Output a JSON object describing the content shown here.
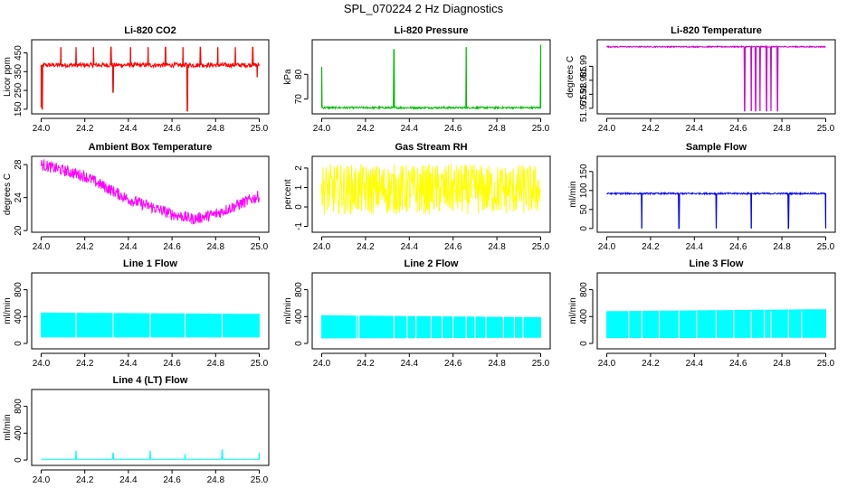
{
  "figure": {
    "title": "SPL_070224  2 Hz Diagnostics"
  },
  "chart_data": [
    {
      "type": "line",
      "title": "Li-820 CO2",
      "ylabel": "Licor ppm",
      "color": "#ff0000",
      "x": [
        24.0,
        25.0
      ],
      "xlim": [
        24.0,
        25.0
      ],
      "ylim": [
        125,
        520
      ],
      "xticks": [
        "24.0",
        "24.2",
        "24.4",
        "24.6",
        "24.8",
        "25.0"
      ],
      "yticks": [
        150,
        250,
        350,
        450
      ],
      "baseline": 385,
      "noise": 12,
      "spikes": [
        [
          24.0,
          160
        ],
        [
          24.005,
          150
        ],
        [
          24.09,
          480
        ],
        [
          24.16,
          480
        ],
        [
          24.24,
          480
        ],
        [
          24.32,
          480
        ],
        [
          24.33,
          240
        ],
        [
          24.41,
          480
        ],
        [
          24.49,
          480
        ],
        [
          24.57,
          480
        ],
        [
          24.65,
          480
        ],
        [
          24.67,
          140
        ],
        [
          24.73,
          480
        ],
        [
          24.81,
          480
        ],
        [
          24.89,
          480
        ],
        [
          24.97,
          480
        ],
        [
          24.99,
          320
        ]
      ]
    },
    {
      "type": "line",
      "title": "Li-820 Pressure",
      "ylabel": "kPa",
      "color": "#00bb00",
      "x": [
        24.0,
        25.0
      ],
      "xlim": [
        24.0,
        25.0
      ],
      "ylim": [
        64,
        94
      ],
      "xticks": [
        "24.0",
        "24.2",
        "24.4",
        "24.6",
        "24.8",
        "25.0"
      ],
      "yticks": [
        70,
        80
      ],
      "baseline": 66.5,
      "noise": 0.4,
      "spikes": [
        [
          24.0,
          83
        ],
        [
          24.33,
          90
        ],
        [
          24.66,
          91
        ],
        [
          25.0,
          92
        ]
      ]
    },
    {
      "type": "line",
      "title": "Li-820 Temperature",
      "ylabel": "degrees C",
      "color": "#cc00cc",
      "x": [
        24.0,
        25.0
      ],
      "xlim": [
        24.0,
        25.0
      ],
      "ylim": [
        51.973,
        51.9995
      ],
      "xticks": [
        "24.0",
        "24.2",
        "24.4",
        "24.6",
        "24.8",
        "25.0"
      ],
      "yticks": [
        51.975,
        51.98,
        51.985,
        51.99
      ],
      "baseline": 51.997,
      "noise": 0.0002,
      "dips": [
        [
          24.63,
          51.974
        ],
        [
          24.66,
          51.974
        ],
        [
          24.68,
          51.974
        ],
        [
          24.7,
          51.974
        ],
        [
          24.73,
          51.974
        ],
        [
          24.75,
          51.974
        ],
        [
          24.78,
          51.974
        ]
      ]
    },
    {
      "type": "line",
      "title": "Ambient Box Temperature",
      "ylabel": "degrees C",
      "color": "#ff00ff",
      "x": [
        24.0,
        25.0
      ],
      "xlim": [
        24.0,
        25.0
      ],
      "ylim": [
        19.8,
        29
      ],
      "xticks": [
        "24.0",
        "24.2",
        "24.4",
        "24.6",
        "24.8",
        "25.0"
      ],
      "yticks": [
        20,
        24,
        28
      ],
      "trend": [
        [
          24.0,
          28.0
        ],
        [
          24.2,
          26.6
        ],
        [
          24.4,
          23.8
        ],
        [
          24.6,
          22.0
        ],
        [
          24.7,
          21.4
        ],
        [
          24.8,
          22.0
        ],
        [
          25.0,
          24.2
        ]
      ],
      "noise": 0.7
    },
    {
      "type": "line",
      "title": "Gas Stream RH",
      "ylabel": "percent",
      "color": "#ffff00",
      "x": [
        24.0,
        25.0
      ],
      "xlim": [
        24.0,
        25.0
      ],
      "ylim": [
        -1.3,
        2.6
      ],
      "xticks": [
        "24.0",
        "24.2",
        "24.4",
        "24.6",
        "24.8",
        "25.0"
      ],
      "yticks": [
        -1,
        0,
        1,
        2
      ],
      "baseline": 0.9,
      "noise": 1.3
    },
    {
      "type": "line",
      "title": "Sample Flow",
      "ylabel": "ml/min",
      "color": "#0000ff",
      "x": [
        24.0,
        25.0
      ],
      "xlim": [
        24.0,
        25.0
      ],
      "ylim": [
        -10,
        190
      ],
      "xticks": [
        "24.0",
        "24.2",
        "24.4",
        "24.6",
        "24.8",
        "25.0"
      ],
      "yticks": [
        0,
        50,
        100,
        150
      ],
      "baseline": 92,
      "noise": 2,
      "dips": [
        [
          24.16,
          0
        ],
        [
          24.33,
          0
        ],
        [
          24.5,
          0
        ],
        [
          24.66,
          0
        ],
        [
          24.83,
          0
        ],
        [
          25.0,
          0
        ]
      ]
    },
    {
      "type": "area",
      "title": "Line 1 Flow",
      "ylabel": "ml/min",
      "color": "#00ffff",
      "x": [
        24.0,
        25.0
      ],
      "xlim": [
        24.0,
        25.0
      ],
      "ylim": [
        -80,
        1050
      ],
      "xticks": [
        "24.0",
        "24.2",
        "24.4",
        "24.6",
        "24.8",
        "25.0"
      ],
      "yticks": [
        0,
        400,
        800
      ],
      "band": [
        90,
        460
      ],
      "bandEnd": [
        90,
        440
      ],
      "gaps": [
        24.16,
        24.33,
        24.5,
        24.66,
        24.83
      ]
    },
    {
      "type": "area",
      "title": "Line 2 Flow",
      "ylabel": "ml/min",
      "color": "#00ffff",
      "x": [
        24.0,
        25.0
      ],
      "xlim": [
        24.0,
        25.0
      ],
      "ylim": [
        -80,
        1050
      ],
      "xticks": [
        "24.0",
        "24.2",
        "24.4",
        "24.6",
        "24.8",
        "25.0"
      ],
      "yticks": [
        0,
        400,
        800
      ],
      "band": [
        75,
        420
      ],
      "bandEnd": [
        85,
        390
      ],
      "gaps": [
        24.16,
        24.17,
        24.33,
        24.39,
        24.43,
        24.5,
        24.55,
        24.6,
        24.66,
        24.7,
        24.75,
        24.83,
        24.88,
        24.92
      ]
    },
    {
      "type": "area",
      "title": "Line 3 Flow",
      "ylabel": "ml/min",
      "color": "#00ffff",
      "x": [
        24.0,
        25.0
      ],
      "xlim": [
        24.0,
        25.0
      ],
      "ylim": [
        -80,
        1050
      ],
      "xticks": [
        "24.0",
        "24.2",
        "24.4",
        "24.6",
        "24.8",
        "25.0"
      ],
      "yticks": [
        0,
        400,
        800
      ],
      "band": [
        80,
        480
      ],
      "bandEnd": [
        85,
        510
      ],
      "gaps": [
        24.1,
        24.16,
        24.24,
        24.33,
        24.41,
        24.5,
        24.58,
        24.66,
        24.72,
        24.75,
        24.83,
        24.89
      ]
    },
    {
      "type": "line",
      "title": "Line 4 (LT) Flow",
      "ylabel": "ml/min",
      "color": "#00ffff",
      "x": [
        24.0,
        25.0
      ],
      "xlim": [
        24.0,
        25.0
      ],
      "ylim": [
        -80,
        1050
      ],
      "xticks": [
        "24.0",
        "24.2",
        "24.4",
        "24.6",
        "24.8",
        "25.0"
      ],
      "yticks": [
        0,
        400,
        800
      ],
      "baseline": 10,
      "noise": 2,
      "spikes": [
        [
          24.16,
          140
        ],
        [
          24.33,
          100
        ],
        [
          24.5,
          140
        ],
        [
          24.66,
          90
        ],
        [
          24.83,
          150
        ],
        [
          25.0,
          110
        ]
      ]
    }
  ]
}
